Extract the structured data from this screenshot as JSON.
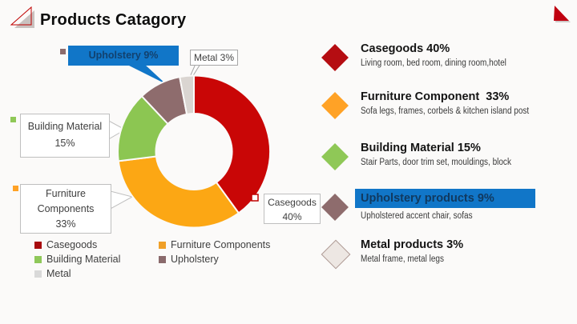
{
  "title": "Products Catagory",
  "accent_blue": "#1176C8",
  "chart_data": {
    "type": "donut",
    "title": "Products Catagory",
    "categories": [
      "Casegoods",
      "Furniture Components",
      "Building Material",
      "Upholstery",
      "Metal"
    ],
    "values": [
      40,
      33,
      15,
      9,
      3
    ],
    "unit": "percent",
    "colors": [
      "#C90606",
      "#FCA714",
      "#8CC652",
      "#8E6C6D",
      "#DAD5D1"
    ],
    "legend_position": "bottom-left",
    "labels_as_callouts": true
  },
  "callouts": {
    "upholstery": "Upholstery 9%",
    "metal": "Metal 3%",
    "building_line1": "Building Material",
    "building_line2": "15%",
    "furniture_line1": "Furniture",
    "furniture_line2": "Components",
    "furniture_line3": "33%",
    "casegoods_line1": "Casegoods",
    "casegoods_line2": "40%"
  },
  "legend": [
    {
      "label": "Casegoods",
      "color": "#A80B0E"
    },
    {
      "label": "Furniture Components",
      "color": "#F0A028"
    },
    {
      "label": "Building Material",
      "color": "#8FC85A"
    },
    {
      "label": "Upholstery",
      "color": "#8A6A6C"
    },
    {
      "label": "Metal",
      "color": "#D9D9D9"
    }
  ],
  "list": [
    {
      "title": "Casegoods 40%",
      "desc": "Living room, bed room, dining room,hotel",
      "color": "#B50D12",
      "border": "#B50D12"
    },
    {
      "title": "Furniture Component  33%",
      "desc": "Sofa legs, frames, corbels & kitchen island post",
      "color": "#FFA226",
      "border": "#FFA226"
    },
    {
      "title": "Building Material 15%",
      "desc": "Stair Parts, door trim set, mouldings, block",
      "color": "#8FC857",
      "border": "#8FC857"
    },
    {
      "title": "Upholstery products 9%",
      "desc": "Upholstered accent chair, sofas",
      "color": "#8E6C6D",
      "border": "#8E6C6D"
    },
    {
      "title": "Metal products 3%",
      "desc": "Metal frame, metal legs",
      "color": "#EDE7E3",
      "border": "#AE9A94"
    }
  ]
}
